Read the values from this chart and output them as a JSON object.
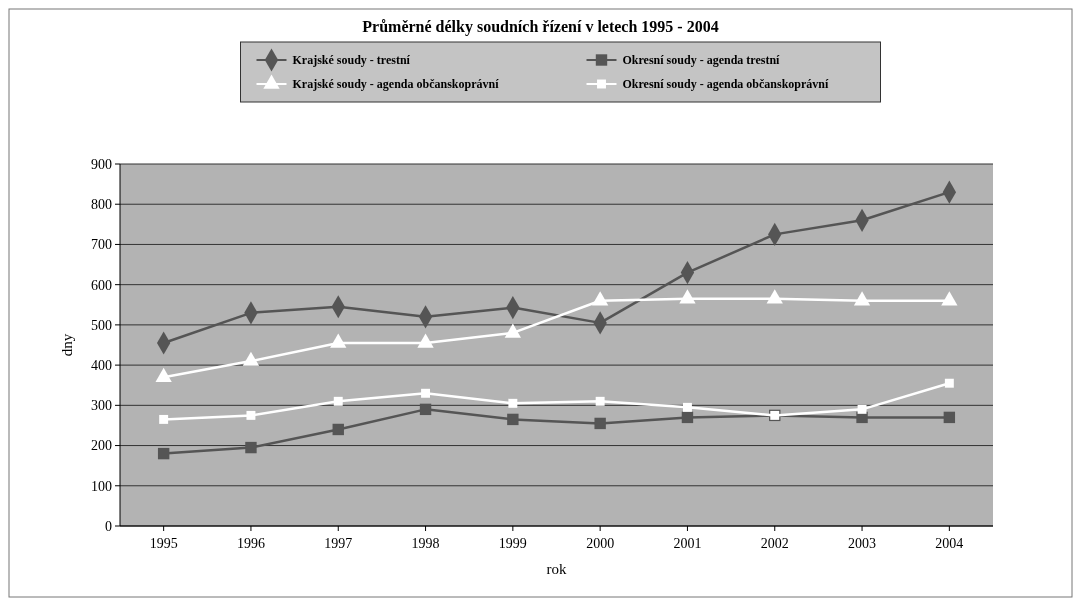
{
  "chart_data": {
    "type": "line",
    "title": "Průměrné délky soudních řízení v letech 1995 - 2004",
    "xlabel": "rok",
    "ylabel": "dny",
    "categories": [
      "1995",
      "1996",
      "1997",
      "1998",
      "1999",
      "2000",
      "2001",
      "2002",
      "2003",
      "2004"
    ],
    "ylim": [
      0,
      900
    ],
    "yticks": [
      0,
      100,
      200,
      300,
      400,
      500,
      600,
      700,
      800,
      900
    ],
    "grid": "y",
    "legend": "top",
    "series": [
      {
        "name": "Krajské soudy - trestní",
        "color": "#555555",
        "marker": "diamond",
        "values": [
          455,
          530,
          545,
          520,
          543,
          505,
          630,
          725,
          760,
          830
        ]
      },
      {
        "name": "Okresní soudy - agenda trestní",
        "color": "#555555",
        "marker": "square",
        "values": [
          180,
          195,
          240,
          290,
          265,
          255,
          270,
          275,
          270,
          270
        ]
      },
      {
        "name": "Krajské soudy - agenda občanskoprávní",
        "color": "#ffffff",
        "marker": "triangle",
        "values": [
          370,
          410,
          455,
          455,
          480,
          560,
          565,
          565,
          560,
          560
        ]
      },
      {
        "name": "Okresní soudy - agenda občanskoprávní",
        "color": "#ffffff",
        "marker": "square",
        "values": [
          265,
          275,
          310,
          330,
          305,
          310,
          295,
          275,
          290,
          355
        ]
      }
    ]
  }
}
